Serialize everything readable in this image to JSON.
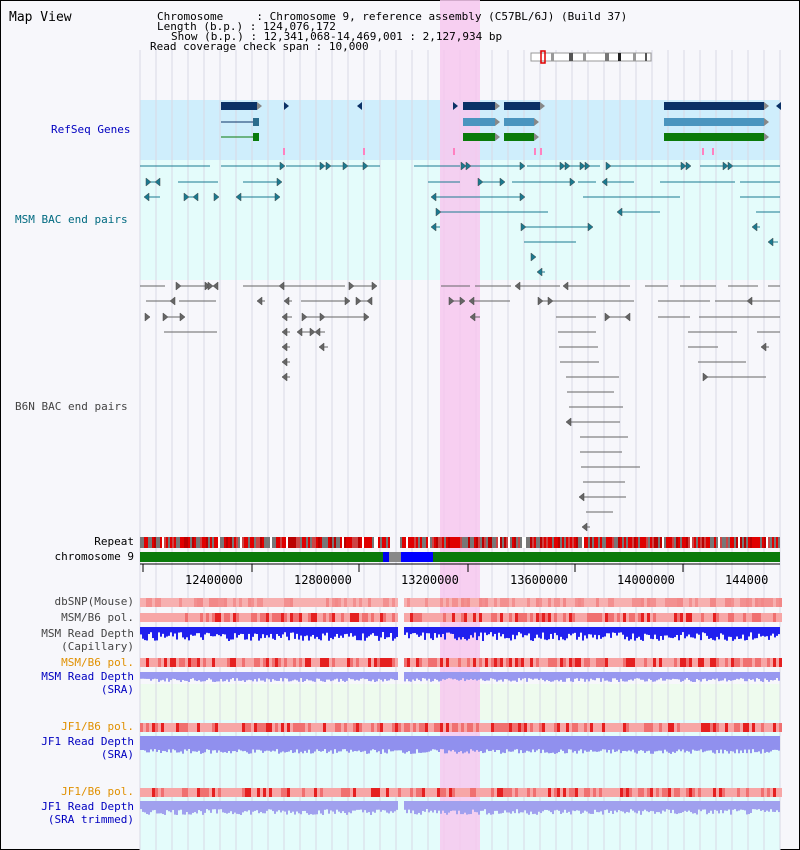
{
  "title": "Map View",
  "info": {
    "chromosome_key": "Chromosome",
    "chromosome_val": "Chromosome 9, reference assembly (C57BL/6J) (Build 37)",
    "length_key": "Length (b.p.)",
    "length_val": "124,076,172",
    "show_key": "Show (b.p.)",
    "show_val": "12,341,068-14,469,001 : 2,127,934 bp",
    "read_key": "Read coverage check span",
    "read_val": "10,000"
  },
  "tracks": {
    "refseq": "RefSeq Genes",
    "msm_bac": "MSM BAC end pairs",
    "b6n_bac": "B6N BAC end pairs",
    "repeat": "Repeat",
    "chromosome": "chromosome 9",
    "dbsnp": "dbSNP(Mouse)",
    "msm_b6_pol": "MSM/B6 pol.",
    "msm_read_depth": "MSM Read Depth",
    "capillary": "(Capillary)",
    "msm_b6_pol2": "MSM/B6 pol.",
    "msm_read_depth_sra": "MSM Read Depth",
    "sra1": "(SRA)",
    "jf1_b6_pol": "JF1/B6 pol.",
    "jf1_read_depth": "JF1 Read Depth",
    "sra2": "(SRA)",
    "jf1_b6_pol2": "JF1/B6 pol.",
    "jf1_read_depth2": "JF1 Read Depth",
    "sra_trimmed": "(SRA trimmed)"
  },
  "axis": {
    "ticks": [
      "12400000",
      "12800000",
      "13200000",
      "13600000",
      "14000000",
      "144000"
    ]
  },
  "colors": {
    "highlight": "#f7c8ef",
    "refseq_bg": "#cfeefc",
    "msm_bg": "#e4fcfb",
    "dark_gene": "#0b3166",
    "mid_gene": "#4a95bf",
    "green_gene": "#0a7a0a",
    "msm_label": "#006a80",
    "refseq_label": "#0000c0",
    "orange_label": "#e09000",
    "blue_label": "#0000c0"
  }
}
